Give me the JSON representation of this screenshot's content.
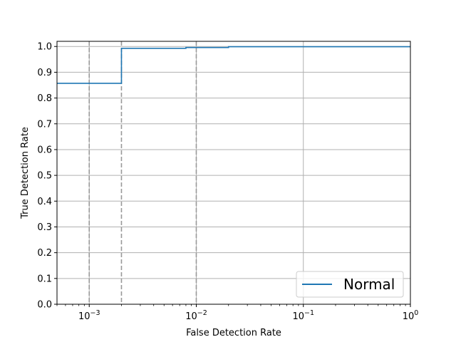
{
  "chart_data": {
    "type": "line",
    "title": "",
    "xlabel": "False Detection Rate",
    "ylabel": "True Detection Rate",
    "xscale": "log",
    "xlim": [
      0.0005,
      1.0
    ],
    "ylim": [
      0.0,
      1.02
    ],
    "x_major_ticks": [
      0.001,
      0.01,
      0.1,
      1.0
    ],
    "x_tick_labels": [
      {
        "base": "10",
        "exp": "−3"
      },
      {
        "base": "10",
        "exp": "−2"
      },
      {
        "base": "10",
        "exp": "−1"
      },
      {
        "base": "10",
        "exp": "0"
      }
    ],
    "y_ticks": [
      0.0,
      0.1,
      0.2,
      0.3,
      0.4,
      0.5,
      0.6,
      0.7,
      0.8,
      0.9,
      1.0
    ],
    "y_tick_labels": [
      "0.0",
      "0.1",
      "0.2",
      "0.3",
      "0.4",
      "0.5",
      "0.6",
      "0.7",
      "0.8",
      "0.9",
      "1.0"
    ],
    "grid": true,
    "reference_lines": [
      0.001,
      0.002,
      0.01
    ],
    "legend_position": "bottom-right",
    "series": [
      {
        "name": "Normal",
        "color": "#1f77b4",
        "step": true,
        "x": [
          0.0005,
          0.002,
          0.002,
          0.008,
          0.008,
          0.02,
          0.02,
          1.0
        ],
        "y": [
          0.857,
          0.857,
          0.993,
          0.993,
          0.996,
          0.996,
          0.999,
          0.999
        ]
      }
    ]
  }
}
